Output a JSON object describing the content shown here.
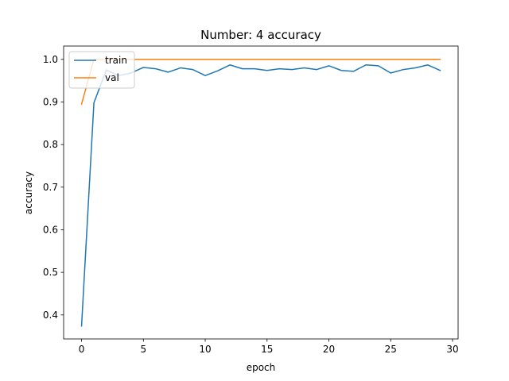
{
  "chart_data": {
    "type": "line",
    "title": "Number: 4 accuracy",
    "xlabel": "epoch",
    "ylabel": "accuracy",
    "xlim": [
      -1.45,
      30.45
    ],
    "ylim": [
      0.3437,
      1.0313
    ],
    "xticks": [
      0,
      5,
      10,
      15,
      20,
      25,
      30
    ],
    "yticks": [
      0.4,
      0.5,
      0.6,
      0.7,
      0.8,
      0.9,
      1.0
    ],
    "xtick_labels": [
      "0",
      "5",
      "10",
      "15",
      "20",
      "25",
      "30"
    ],
    "ytick_labels": [
      "0.4",
      "0.5",
      "0.6",
      "0.7",
      "0.8",
      "0.9",
      "1.0"
    ],
    "grid": false,
    "legend_position": "upper left",
    "x": [
      0,
      1,
      2,
      3,
      4,
      5,
      6,
      7,
      8,
      9,
      10,
      11,
      12,
      13,
      14,
      15,
      16,
      17,
      18,
      19,
      20,
      21,
      22,
      23,
      24,
      25,
      26,
      27,
      28,
      29
    ],
    "series": [
      {
        "name": "train",
        "color": "#1f77b4",
        "values": [
          0.374,
          0.898,
          0.975,
          0.962,
          0.968,
          0.981,
          0.978,
          0.97,
          0.98,
          0.976,
          0.962,
          0.973,
          0.987,
          0.978,
          0.978,
          0.974,
          0.978,
          0.976,
          0.98,
          0.976,
          0.985,
          0.974,
          0.972,
          0.987,
          0.985,
          0.968,
          0.976,
          0.98,
          0.987,
          0.974
        ]
      },
      {
        "name": "val",
        "color": "#ff7f0e",
        "values": [
          0.895,
          1.0,
          1.0,
          1.0,
          1.0,
          1.0,
          1.0,
          1.0,
          1.0,
          1.0,
          1.0,
          1.0,
          1.0,
          1.0,
          1.0,
          1.0,
          1.0,
          1.0,
          1.0,
          1.0,
          1.0,
          1.0,
          1.0,
          1.0,
          1.0,
          1.0,
          1.0,
          1.0,
          1.0,
          1.0
        ]
      }
    ]
  }
}
